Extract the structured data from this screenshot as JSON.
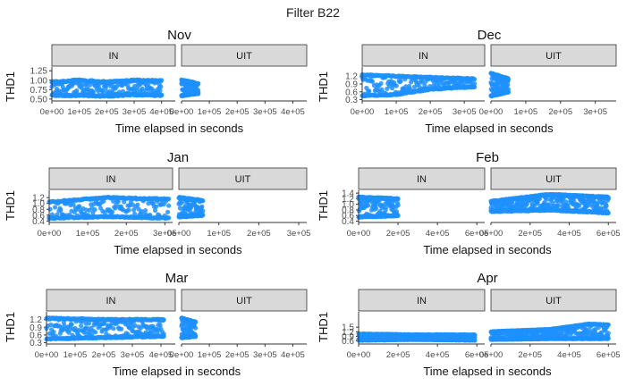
{
  "figure_title": "Filter B22",
  "colors": {
    "point": "#1E90FF",
    "strip": "#d9d9d9",
    "axis": "#333333",
    "tick_text": "#4d4d4d"
  },
  "chart_data": [
    {
      "type": "scatter",
      "title": "Nov",
      "xlabel": "Time elapsed in seconds",
      "ylabel": "THD1",
      "xlim": [
        0,
        450000
      ],
      "ylim": [
        0.45,
        1.35
      ],
      "xticks": [
        0,
        100000,
        200000,
        300000,
        400000
      ],
      "xtick_labels": [
        "0e+00",
        "1e+05",
        "2e+05",
        "3e+05",
        "4e+05"
      ],
      "yticks": [
        0.5,
        0.75,
        1.0,
        1.25
      ],
      "ytick_labels": [
        "0.50",
        "0.75",
        "1.00",
        "1.25"
      ],
      "panels": [
        {
          "strip": "IN",
          "x_range": [
            0,
            400000
          ],
          "y_band": [
            0.55,
            1.02
          ],
          "upper_trend": [
            [
              0,
              0.95
            ],
            [
              100000,
              1.0
            ],
            [
              200000,
              0.95
            ],
            [
              300000,
              1.0
            ],
            [
              400000,
              0.98
            ]
          ],
          "lower_trend": [
            [
              0,
              0.6
            ],
            [
              100000,
              0.6
            ],
            [
              200000,
              0.58
            ],
            [
              300000,
              0.62
            ],
            [
              400000,
              0.6
            ]
          ]
        },
        {
          "strip": "UIT",
          "x_range": [
            0,
            60000
          ],
          "y_band": [
            0.58,
            1.05
          ],
          "upper_trend": [
            [
              0,
              1.0
            ],
            [
              60000,
              0.9
            ]
          ],
          "lower_trend": [
            [
              0,
              0.6
            ],
            [
              60000,
              0.65
            ]
          ]
        }
      ]
    },
    {
      "type": "scatter",
      "title": "Dec",
      "xlabel": "Time elapsed in seconds",
      "ylabel": "THD1",
      "xlim": [
        0,
        360000
      ],
      "ylim": [
        0.25,
        1.55
      ],
      "xticks": [
        0,
        100000,
        200000,
        300000
      ],
      "xtick_labels": [
        "0e+00",
        "1e+05",
        "2e+05",
        "3e+05"
      ],
      "yticks": [
        0.3,
        0.6,
        0.9,
        1.2
      ],
      "ytick_labels": [
        "0.3",
        "0.6",
        "0.9",
        "1.2"
      ],
      "panels": [
        {
          "strip": "IN",
          "x_range": [
            0,
            330000
          ],
          "y_band": [
            0.4,
            1.3
          ],
          "upper_trend": [
            [
              0,
              1.25
            ],
            [
              100000,
              1.2
            ],
            [
              200000,
              1.15
            ],
            [
              330000,
              1.1
            ]
          ],
          "lower_trend": [
            [
              0,
              0.45
            ],
            [
              100000,
              0.5
            ],
            [
              200000,
              0.7
            ],
            [
              330000,
              0.8
            ]
          ]
        },
        {
          "strip": "UIT",
          "x_range": [
            0,
            50000
          ],
          "y_band": [
            0.4,
            1.35
          ],
          "upper_trend": [
            [
              0,
              1.3
            ],
            [
              50000,
              1.1
            ]
          ],
          "lower_trend": [
            [
              0,
              0.45
            ],
            [
              50000,
              0.6
            ]
          ]
        }
      ]
    },
    {
      "type": "scatter",
      "title": "Jan",
      "xlabel": "Time elapsed in seconds",
      "ylabel": "THD1",
      "xlim": [
        0,
        320000
      ],
      "ylim": [
        0.35,
        1.45
      ],
      "xticks": [
        0,
        100000,
        200000,
        300000
      ],
      "xtick_labels": [
        "0e+00",
        "1e+05",
        "2e+05",
        "3e+05"
      ],
      "yticks": [
        0.4,
        0.6,
        0.8,
        1.0,
        1.2
      ],
      "ytick_labels": [
        "0.4",
        "0.6",
        "0.8",
        "1.0",
        "1.2"
      ],
      "panels": [
        {
          "strip": "IN",
          "x_range": [
            0,
            310000
          ],
          "y_band": [
            0.45,
            1.25
          ],
          "upper_trend": [
            [
              0,
              1.05
            ],
            [
              150000,
              1.2
            ],
            [
              310000,
              1.15
            ]
          ],
          "lower_trend": [
            [
              0,
              0.5
            ],
            [
              150000,
              0.55
            ],
            [
              310000,
              0.5
            ]
          ]
        },
        {
          "strip": "UIT",
          "x_range": [
            0,
            60000
          ],
          "y_band": [
            0.5,
            1.25
          ],
          "upper_trend": [
            [
              0,
              1.2
            ],
            [
              60000,
              1.1
            ]
          ],
          "lower_trend": [
            [
              0,
              0.55
            ],
            [
              60000,
              0.6
            ]
          ]
        }
      ]
    },
    {
      "type": "scatter",
      "title": "Feb",
      "xlabel": "Time elapsed in seconds",
      "ylabel": "THD1",
      "xlim": [
        0,
        640000
      ],
      "ylim": [
        0.35,
        1.5
      ],
      "xticks": [
        0,
        200000,
        400000,
        600000
      ],
      "xtick_labels": [
        "0e+00",
        "2e+05",
        "4e+05",
        "6e+05"
      ],
      "yticks": [
        0.4,
        0.6,
        0.8,
        1.0,
        1.2,
        1.4
      ],
      "ytick_labels": [
        "0.4",
        "0.6",
        "0.8",
        "1.0",
        "1.2",
        "1.4"
      ],
      "panels": [
        {
          "strip": "IN",
          "x_range": [
            0,
            200000
          ],
          "y_band": [
            0.5,
            1.3
          ],
          "upper_trend": [
            [
              0,
              1.25
            ],
            [
              200000,
              1.2
            ]
          ],
          "lower_trend": [
            [
              0,
              0.55
            ],
            [
              200000,
              0.6
            ]
          ]
        },
        {
          "strip": "UIT",
          "x_range": [
            0,
            600000
          ],
          "y_band": [
            0.6,
            1.45
          ],
          "upper_trend": [
            [
              0,
              1.1
            ],
            [
              300000,
              1.35
            ],
            [
              600000,
              1.25
            ]
          ],
          "lower_trend": [
            [
              0,
              0.75
            ],
            [
              300000,
              0.8
            ],
            [
              600000,
              0.7
            ]
          ]
        }
      ]
    },
    {
      "type": "scatter",
      "title": "Mar",
      "xlabel": "Time elapsed in seconds",
      "ylabel": "THD1",
      "xlim": [
        0,
        450000
      ],
      "ylim": [
        0.25,
        1.5
      ],
      "xticks": [
        0,
        100000,
        200000,
        300000,
        400000
      ],
      "xtick_labels": [
        "0e+00",
        "1e+05",
        "2e+05",
        "3e+05",
        "4e+05"
      ],
      "yticks": [
        0.3,
        0.6,
        0.9,
        1.2
      ],
      "ytick_labels": [
        "0.3",
        "0.6",
        "0.9",
        "1.2"
      ],
      "panels": [
        {
          "strip": "IN",
          "x_range": [
            0,
            410000
          ],
          "y_band": [
            0.4,
            1.3
          ],
          "upper_trend": [
            [
              0,
              1.25
            ],
            [
              200000,
              1.2
            ],
            [
              410000,
              1.2
            ]
          ],
          "lower_trend": [
            [
              0,
              0.45
            ],
            [
              200000,
              0.5
            ],
            [
              410000,
              0.55
            ]
          ]
        },
        {
          "strip": "UIT",
          "x_range": [
            0,
            50000
          ],
          "y_band": [
            0.45,
            1.3
          ],
          "upper_trend": [
            [
              0,
              1.25
            ],
            [
              50000,
              1.1
            ]
          ],
          "lower_trend": [
            [
              0,
              0.5
            ],
            [
              50000,
              0.55
            ]
          ]
        }
      ]
    },
    {
      "type": "scatter",
      "title": "Apr",
      "xlabel": "Time elapsed in seconds",
      "ylabel": "THD1",
      "xlim": [
        0,
        640000
      ],
      "ylim": [
        0.4,
        2.5
      ],
      "xticks": [
        0,
        200000,
        400000,
        600000
      ],
      "xtick_labels": [
        "0e+00",
        "2e+05",
        "4e+05",
        "6e+05"
      ],
      "yticks": [
        0.6,
        0.9,
        1.2,
        1.5
      ],
      "ytick_labels": [
        "0.6",
        "0.9",
        "1.2",
        "1.5"
      ],
      "panels": [
        {
          "strip": "IN",
          "x_range": [
            0,
            590000
          ],
          "y_band": [
            0.6,
            1.1
          ],
          "upper_trend": [
            [
              0,
              1.05
            ],
            [
              300000,
              1.0
            ],
            [
              590000,
              1.0
            ]
          ],
          "lower_trend": [
            [
              0,
              0.65
            ],
            [
              300000,
              0.7
            ],
            [
              590000,
              0.65
            ]
          ]
        },
        {
          "strip": "UIT",
          "x_range": [
            0,
            600000
          ],
          "y_band": [
            0.6,
            1.75
          ],
          "upper_trend": [
            [
              0,
              1.2
            ],
            [
              300000,
              1.35
            ],
            [
              500000,
              1.7
            ],
            [
              600000,
              1.65
            ]
          ],
          "lower_trend": [
            [
              0,
              0.7
            ],
            [
              300000,
              0.75
            ],
            [
              600000,
              0.75
            ]
          ]
        }
      ]
    }
  ]
}
